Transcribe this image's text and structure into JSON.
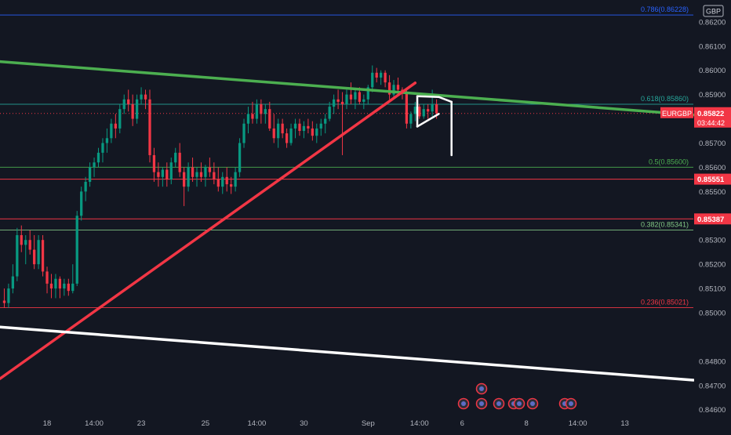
{
  "chart_data": {
    "type": "candlestick",
    "symbol": "EURGBP",
    "currency": "GBP",
    "y_range": [
      0.8457,
      0.8629
    ],
    "x_range": [
      -1,
      161
    ],
    "x_ticks": [
      {
        "i": 10,
        "label": "18"
      },
      {
        "i": 21,
        "label": "14:00"
      },
      {
        "i": 32,
        "label": "23"
      },
      {
        "i": 47,
        "label": "25"
      },
      {
        "i": 59,
        "label": "14:00"
      },
      {
        "i": 70,
        "label": "30"
      },
      {
        "i": 85,
        "label": "Sep"
      },
      {
        "i": 97,
        "label": "14:00"
      },
      {
        "i": 107,
        "label": "6"
      },
      {
        "i": 122,
        "label": "8"
      },
      {
        "i": 134,
        "label": "14:00"
      },
      {
        "i": 145,
        "label": "13"
      }
    ],
    "y_ticks": [
      "0.86200",
      "0.86100",
      "0.86000",
      "0.85900",
      "0.85700",
      "0.85600",
      "0.85500",
      "0.85300",
      "0.85200",
      "0.85100",
      "0.85000",
      "0.84800",
      "0.84700",
      "0.84600"
    ],
    "y_tick_values": [
      0.862,
      0.861,
      0.86,
      0.859,
      0.857,
      0.856,
      0.855,
      0.853,
      0.852,
      0.851,
      0.85,
      0.848,
      0.847,
      0.846
    ],
    "price_labels": {
      "last": {
        "symbol": "EURGBP",
        "price": "0.85822",
        "value": 0.85822,
        "countdown": "03:44:42",
        "color": "#f23645"
      },
      "level1": {
        "price": "0.85551",
        "value": 0.85551,
        "color": "#f23645"
      },
      "level2": {
        "price": "0.85387",
        "value": 0.85387,
        "color": "#f23645"
      }
    },
    "fib_levels": [
      {
        "label": "0.786(0.86228)",
        "value": 0.86228,
        "color": "#2962ff"
      },
      {
        "label": "0.618(0.85860)",
        "value": 0.8586,
        "color": "#26a69a"
      },
      {
        "label": "0.5(0.85600)",
        "value": 0.856,
        "color": "#4caf50"
      },
      {
        "label": "0.382(0.85341)",
        "value": 0.85341,
        "color": "#81c784"
      },
      {
        "label": "0.236(0.85021)",
        "value": 0.85021,
        "color": "#f23645"
      }
    ],
    "horizontal_lines": [
      {
        "value": 0.85551,
        "color": "#f23645"
      },
      {
        "value": 0.85387,
        "color": "#f23645"
      }
    ],
    "trend_lines": [
      {
        "name": "green-resistance",
        "from": [
          -1,
          0.86036
        ],
        "to": [
          161,
          0.85816
        ],
        "color": "#4caf50"
      },
      {
        "name": "red-support",
        "from": [
          -1,
          0.84728
        ],
        "to": [
          96,
          0.85948
        ],
        "color": "#f23645"
      },
      {
        "name": "white-channel",
        "from": [
          -1,
          0.84941
        ],
        "to": [
          161,
          0.84722
        ],
        "color": "#ffffff"
      }
    ],
    "pattern_lines": [
      {
        "from": [
          96.5,
          0.85893
        ],
        "to": [
          101.5,
          0.8589
        ]
      },
      {
        "from": [
          96.5,
          0.85768
        ],
        "to": [
          101.5,
          0.8582
        ]
      },
      {
        "from": [
          96.5,
          0.85893
        ],
        "to": [
          96.5,
          0.85768
        ]
      },
      {
        "from": [
          101.5,
          0.8589
        ],
        "to": [
          104.5,
          0.8587
        ]
      },
      {
        "from": [
          104.5,
          0.8587
        ],
        "to": [
          104.5,
          0.8565
        ]
      }
    ],
    "candles": [
      [
        0.8505,
        0.851,
        0.8502,
        0.8504
      ],
      [
        0.8504,
        0.8512,
        0.8502,
        0.851
      ],
      [
        0.851,
        0.852,
        0.8508,
        0.8515
      ],
      [
        0.8515,
        0.8535,
        0.8513,
        0.8532
      ],
      [
        0.8532,
        0.8536,
        0.8525,
        0.8528
      ],
      [
        0.8528,
        0.8532,
        0.852,
        0.853
      ],
      [
        0.853,
        0.8534,
        0.8524,
        0.8526
      ],
      [
        0.8526,
        0.8532,
        0.8518,
        0.852
      ],
      [
        0.852,
        0.8532,
        0.8518,
        0.853
      ],
      [
        0.853,
        0.8532,
        0.8515,
        0.8517
      ],
      [
        0.8517,
        0.8519,
        0.8508,
        0.8512
      ],
      [
        0.8512,
        0.8516,
        0.8506,
        0.851
      ],
      [
        0.851,
        0.8516,
        0.8506,
        0.8514
      ],
      [
        0.8514,
        0.8515,
        0.8506,
        0.851
      ],
      [
        0.851,
        0.8514,
        0.8507,
        0.8512
      ],
      [
        0.8512,
        0.8514,
        0.8507,
        0.8509
      ],
      [
        0.8509,
        0.852,
        0.8508,
        0.8512
      ],
      [
        0.8512,
        0.8542,
        0.8511,
        0.854
      ],
      [
        0.854,
        0.8552,
        0.8538,
        0.855
      ],
      [
        0.855,
        0.8556,
        0.8546,
        0.8554
      ],
      [
        0.8554,
        0.8562,
        0.8552,
        0.856
      ],
      [
        0.856,
        0.8564,
        0.8556,
        0.8562
      ],
      [
        0.8562,
        0.8568,
        0.856,
        0.8566
      ],
      [
        0.8566,
        0.8572,
        0.8562,
        0.857
      ],
      [
        0.857,
        0.8576,
        0.8566,
        0.8572
      ],
      [
        0.8572,
        0.858,
        0.857,
        0.8578
      ],
      [
        0.8578,
        0.8582,
        0.8572,
        0.8576
      ],
      [
        0.8576,
        0.8586,
        0.8574,
        0.8584
      ],
      [
        0.8584,
        0.859,
        0.8582,
        0.8588
      ],
      [
        0.8588,
        0.8592,
        0.8583,
        0.8586
      ],
      [
        0.8586,
        0.859,
        0.8577,
        0.858
      ],
      [
        0.858,
        0.859,
        0.8578,
        0.8588
      ],
      [
        0.8588,
        0.8593,
        0.8586,
        0.859
      ],
      [
        0.859,
        0.8592,
        0.8584,
        0.8588
      ],
      [
        0.8588,
        0.8592,
        0.8562,
        0.8565
      ],
      [
        0.8565,
        0.8568,
        0.8554,
        0.8558
      ],
      [
        0.8558,
        0.8562,
        0.8552,
        0.8556
      ],
      [
        0.8556,
        0.856,
        0.8552,
        0.8559
      ],
      [
        0.8559,
        0.8562,
        0.8552,
        0.8555
      ],
      [
        0.8555,
        0.8564,
        0.8553,
        0.8562
      ],
      [
        0.8562,
        0.8568,
        0.856,
        0.8566
      ],
      [
        0.8566,
        0.857,
        0.8556,
        0.8558
      ],
      [
        0.8558,
        0.856,
        0.8544,
        0.8552
      ],
      [
        0.8552,
        0.8562,
        0.855,
        0.856
      ],
      [
        0.856,
        0.8564,
        0.8554,
        0.8556
      ],
      [
        0.8556,
        0.856,
        0.8552,
        0.8558
      ],
      [
        0.8558,
        0.8562,
        0.8554,
        0.8556
      ],
      [
        0.8556,
        0.8561,
        0.8552,
        0.856
      ],
      [
        0.856,
        0.8564,
        0.8556,
        0.8558
      ],
      [
        0.8558,
        0.8562,
        0.8553,
        0.8555
      ],
      [
        0.8555,
        0.856,
        0.855,
        0.8552
      ],
      [
        0.8552,
        0.8558,
        0.8549,
        0.8556
      ],
      [
        0.8556,
        0.856,
        0.855,
        0.8553
      ],
      [
        0.8553,
        0.8556,
        0.8549,
        0.8552
      ],
      [
        0.8552,
        0.856,
        0.855,
        0.8558
      ],
      [
        0.8558,
        0.8572,
        0.8556,
        0.857
      ],
      [
        0.857,
        0.858,
        0.8568,
        0.8578
      ],
      [
        0.8578,
        0.8585,
        0.8574,
        0.8582
      ],
      [
        0.8582,
        0.8587,
        0.8578,
        0.858
      ],
      [
        0.858,
        0.8588,
        0.8578,
        0.8586
      ],
      [
        0.8586,
        0.8588,
        0.8578,
        0.8582
      ],
      [
        0.8582,
        0.8586,
        0.8578,
        0.8584
      ],
      [
        0.8584,
        0.8587,
        0.8575,
        0.8576
      ],
      [
        0.8576,
        0.8582,
        0.857,
        0.8572
      ],
      [
        0.8572,
        0.858,
        0.8568,
        0.8578
      ],
      [
        0.8578,
        0.858,
        0.8572,
        0.8574
      ],
      [
        0.8574,
        0.8576,
        0.8568,
        0.857
      ],
      [
        0.857,
        0.8578,
        0.8569,
        0.8576
      ],
      [
        0.8576,
        0.858,
        0.8572,
        0.8578
      ],
      [
        0.8578,
        0.858,
        0.8573,
        0.8575
      ],
      [
        0.8575,
        0.8579,
        0.8572,
        0.8577
      ],
      [
        0.8577,
        0.858,
        0.8574,
        0.8576
      ],
      [
        0.8576,
        0.8579,
        0.8571,
        0.8573
      ],
      [
        0.8573,
        0.8578,
        0.857,
        0.8576
      ],
      [
        0.8576,
        0.858,
        0.8573,
        0.8578
      ],
      [
        0.8578,
        0.8582,
        0.8574,
        0.858
      ],
      [
        0.858,
        0.8587,
        0.8579,
        0.8585
      ],
      [
        0.8585,
        0.859,
        0.8582,
        0.8588
      ],
      [
        0.8588,
        0.8592,
        0.8584,
        0.8587
      ],
      [
        0.8587,
        0.8591,
        0.8565,
        0.8586
      ],
      [
        0.8586,
        0.8592,
        0.8584,
        0.859
      ],
      [
        0.859,
        0.8595,
        0.8586,
        0.8588
      ],
      [
        0.8588,
        0.8592,
        0.8584,
        0.8591
      ],
      [
        0.8591,
        0.8593,
        0.8586,
        0.8587
      ],
      [
        0.8587,
        0.859,
        0.8584,
        0.8588
      ],
      [
        0.8588,
        0.8594,
        0.8586,
        0.8593
      ],
      [
        0.8593,
        0.8602,
        0.8591,
        0.8599
      ],
      [
        0.8599,
        0.8601,
        0.8595,
        0.8597
      ],
      [
        0.8597,
        0.86,
        0.8594,
        0.8599
      ],
      [
        0.8599,
        0.86,
        0.8593,
        0.8595
      ],
      [
        0.8595,
        0.8598,
        0.8588,
        0.859
      ],
      [
        0.859,
        0.8596,
        0.8588,
        0.8594
      ],
      [
        0.8594,
        0.8597,
        0.859,
        0.8592
      ],
      [
        0.8592,
        0.8593,
        0.8588,
        0.8591
      ],
      [
        0.8591,
        0.8592,
        0.8576,
        0.8578
      ],
      [
        0.8578,
        0.8583,
        0.8576,
        0.8582
      ],
      [
        0.8582,
        0.8587,
        0.8579,
        0.8585
      ],
      [
        0.8585,
        0.8586,
        0.858,
        0.8581
      ],
      [
        0.8581,
        0.8586,
        0.858,
        0.8584
      ],
      [
        0.8584,
        0.8586,
        0.858,
        0.8583
      ],
      [
        0.8583,
        0.8592,
        0.8581,
        0.8586
      ],
      [
        0.8586,
        0.8588,
        0.858,
        0.85822
      ]
    ]
  }
}
